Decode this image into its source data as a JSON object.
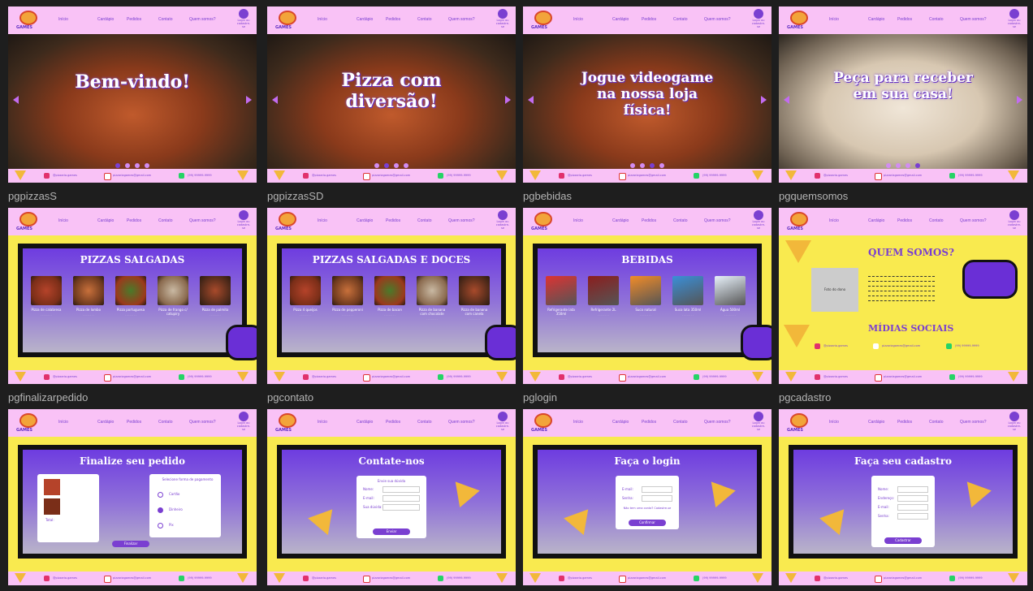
{
  "nav": {
    "brand": "GAMES",
    "items": [
      "Início",
      "Cardápio",
      "Pedidos",
      "Contato",
      "Quem somos?"
    ],
    "user": "Login ou cadastre-se"
  },
  "footer": {
    "instagram": "@pizzaria.games",
    "email": "pizzariagames@gmail.com",
    "phone": "(99) 99999-9999"
  },
  "frames": [
    {
      "label": "",
      "title": "Bem-vindo!",
      "dot": 1
    },
    {
      "label": "",
      "title": "Pizza com diversão!",
      "dot": 2
    },
    {
      "label": "",
      "title": "Jogue videogame na nossa loja física!",
      "dot": 3
    },
    {
      "label": "",
      "title": "Peça para receber em sua casa!",
      "dot": 4
    },
    {
      "label": "pgpizzasS",
      "title": "PIZZAS SALGADAS",
      "items": [
        "Pizza de calabresa",
        "Pizza de lombo",
        "Pizza portuguesa",
        "Pizza de frango c/ catupiry",
        "Pizza de palmito"
      ]
    },
    {
      "label": "pgpizzasSD",
      "title": "PIZZAS SALGADAS E DOCES",
      "items": [
        "Pizza 4 queijos",
        "Pizza de pepperoni",
        "Pizza de bacon",
        "Pizza de banana com chocolate",
        "Pizza de banana com canela"
      ]
    },
    {
      "label": "pgbebidas",
      "title": "BEBIDAS",
      "items": [
        "Refrigerante lata 350ml",
        "Refrigerante 2L",
        "Suco natural",
        "Suco lata 350ml",
        "Água 500ml"
      ]
    },
    {
      "label": "pgquemsomos",
      "title": "QUEM SOMOS?",
      "subtitle": "MÍDIAS SOCIAIS",
      "photo": "Foto do dono"
    },
    {
      "label": "pgfinalizarpedido",
      "title": "Finalize seu pedido",
      "total": "Total:",
      "payment": "Selecione forma de pagamento",
      "options": [
        "Cartão",
        "Dinheiro",
        "Pix"
      ],
      "button": "Finalizar"
    },
    {
      "label": "pgcontato",
      "title": "Contate-nos",
      "sub": "Envie sua dúvida",
      "fields": [
        "Nome:",
        "E-mail:",
        "Sua dúvida:"
      ],
      "button": "Enviar"
    },
    {
      "label": "pglogin",
      "title": "Faça o login",
      "fields": [
        "E-mail:",
        "Senha:"
      ],
      "note": "Não tem uma conta? Cadastre-se",
      "button": "Confirmar"
    },
    {
      "label": "pgcadastro",
      "title": "Faça seu cadastro",
      "fields": [
        "Nome:",
        "Endereço:",
        "E-mail:",
        "Senha:"
      ],
      "button": "Cadastrar"
    }
  ],
  "colors": {
    "pink": "#f9c2f6",
    "purple": "#7a3fd1",
    "yellow": "#f9ea4f"
  }
}
